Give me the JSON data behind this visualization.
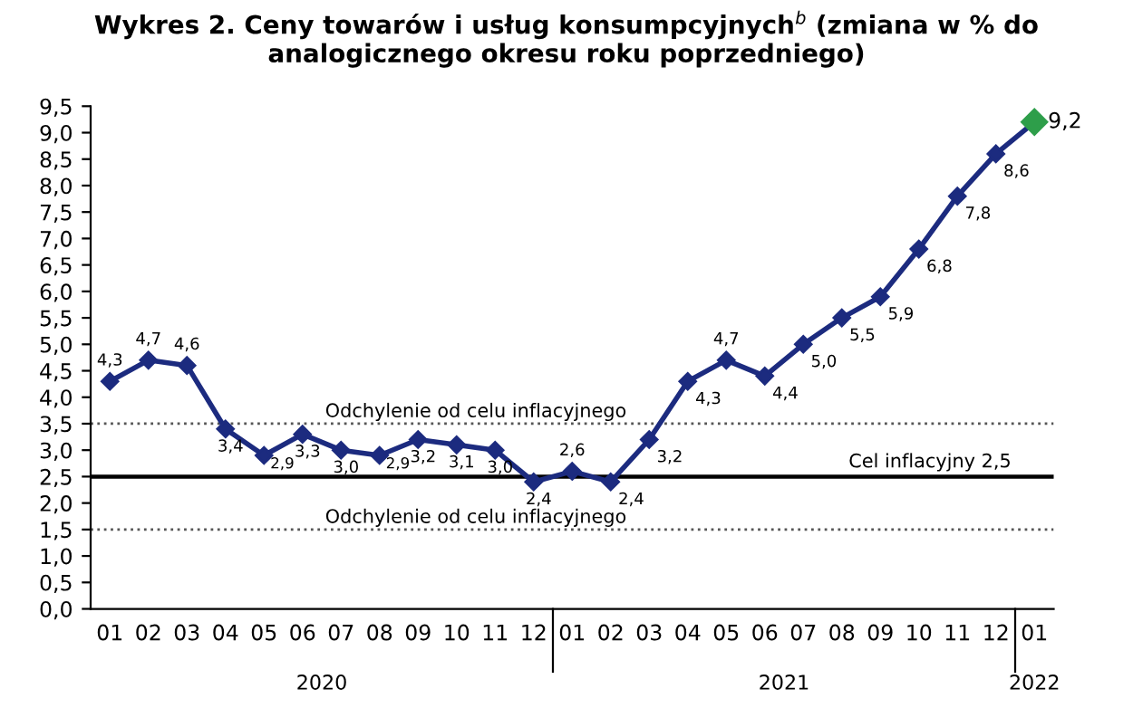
{
  "chart_data": {
    "type": "line",
    "title": "Wykres 2. Ceny towarów i usług konsumpcyjnych$^{b}$ (zmiana w % do analogicznego okresu roku poprzedniego)",
    "categories": [
      "01",
      "02",
      "03",
      "04",
      "05",
      "06",
      "07",
      "08",
      "09",
      "10",
      "11",
      "12",
      "01",
      "02",
      "03",
      "04",
      "05",
      "06",
      "07",
      "08",
      "09",
      "10",
      "11",
      "12",
      "01"
    ],
    "series": [
      {
        "color": "#1c2b7f",
        "colors": [
          "#1c2b7f",
          "#1c2b7f",
          "#1c2b7f",
          "#1c2b7f",
          "#1c2b7f",
          "#1c2b7f",
          "#1c2b7f",
          "#1c2b7f",
          "#1c2b7f",
          "#1c2b7f",
          "#1c2b7f",
          "#1c2b7f",
          "#1c2b7f",
          "#1c2b7f",
          "#1c2b7f",
          "#1c2b7f",
          "#1c2b7f",
          "#1c2b7f",
          "#1c2b7f",
          "#1c2b7f",
          "#1c2b7f",
          "#1c2b7f",
          "#1c2b7f",
          "#1c2b7f",
          "#2e9e4a"
        ],
        "values": [
          4.3,
          4.7,
          4.6,
          3.4,
          2.9,
          3.3,
          3.0,
          2.9,
          3.2,
          3.1,
          3.0,
          2.4,
          2.6,
          2.4,
          3.2,
          4.3,
          4.7,
          4.4,
          5.0,
          5.5,
          5.9,
          6.8,
          7.8,
          8.6,
          9.2
        ],
        "value_labels": [
          "4,3",
          "4,7",
          "4,6",
          "3,4",
          "2,9",
          "3,3",
          "3,0",
          "2,9",
          "3,2",
          "3,1",
          "3,0",
          "2,4",
          "2,6",
          "2,4",
          "3,2",
          "4,3",
          "4,7",
          "4,4",
          "5,0",
          "5,5",
          "5,9",
          "6,8",
          "7,8",
          "8,6",
          "9,2"
        ]
      }
    ],
    "ylim": [
      0,
      9.5
    ],
    "yticks": [
      {
        "value": 0,
        "label": "0,0"
      },
      {
        "value": 0.5,
        "label": "0,5"
      },
      {
        "value": 1,
        "label": "1,0"
      },
      {
        "value": 1.5,
        "label": "1,5"
      },
      {
        "value": 2,
        "label": "2,0"
      },
      {
        "value": 2.5,
        "label": "2,5"
      },
      {
        "value": 3,
        "label": "3,0"
      },
      {
        "value": 3.5,
        "label": "3,5"
      },
      {
        "value": 4,
        "label": "4,0"
      },
      {
        "value": 4.5,
        "label": "4,5"
      },
      {
        "value": 5,
        "label": "5,0"
      },
      {
        "value": 5.5,
        "label": "5,5"
      },
      {
        "value": 6,
        "label": "6,0"
      },
      {
        "value": 6.5,
        "label": "6,5"
      },
      {
        "value": 7,
        "label": "7,0"
      },
      {
        "value": 7.5,
        "label": "7,5"
      },
      {
        "value": 8,
        "label": "8,0"
      },
      {
        "value": 8.5,
        "label": "8,5"
      },
      {
        "value": 9,
        "label": "9,0"
      },
      {
        "value": 9.5,
        "label": "9,5"
      }
    ],
    "ref_lines": [
      {
        "axis": "y",
        "value": 3.5,
        "label": "Odchylenie od celu inflacyjnego",
        "line_style": "dotted",
        "color": "#555555"
      },
      {
        "axis": "y",
        "value": 2.5,
        "label": "Cel inflacyjny 2,5",
        "line_style": "solid",
        "color": "#000000"
      },
      {
        "axis": "y",
        "value": 1.5,
        "label": "Odchylenie od celu inflacyjnego",
        "line_style": "dotted",
        "color": "#555555"
      }
    ],
    "annotations": [
      "2020",
      "2021",
      "2022"
    ],
    "marker": "diamond",
    "line_style": "solid",
    "grid": false,
    "legend": false
  }
}
